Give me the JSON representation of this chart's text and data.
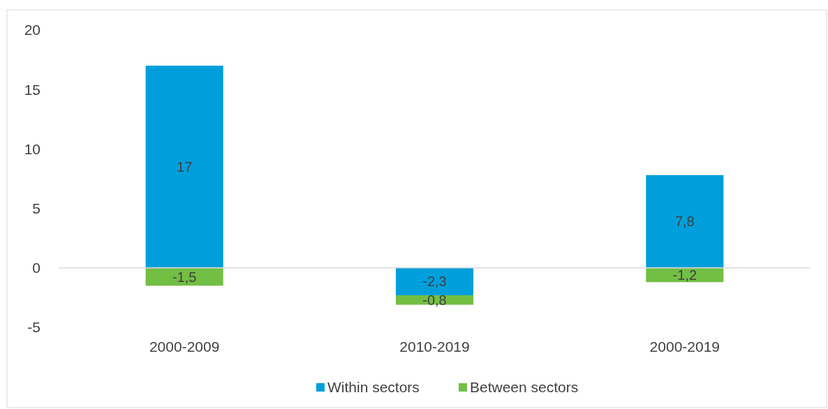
{
  "chart_data": {
    "type": "bar",
    "stacked": true,
    "categories": [
      "2000-2009",
      "2010-2019",
      "2000-2019"
    ],
    "series": [
      {
        "name": "Within sectors",
        "color": "#009fdb",
        "values": [
          17,
          -2.3,
          7.8
        ],
        "value_labels": [
          "17",
          "-2,3",
          "7,8"
        ]
      },
      {
        "name": "Between sectors",
        "color": "#72bf44",
        "values": [
          -1.5,
          -0.8,
          -1.2
        ],
        "value_labels": [
          "-1,5",
          "-0,8",
          "-1,2"
        ]
      }
    ],
    "ylim": [
      -5,
      20
    ],
    "yticks": [
      -5,
      0,
      5,
      10,
      15,
      20
    ],
    "legend": "bottom"
  }
}
